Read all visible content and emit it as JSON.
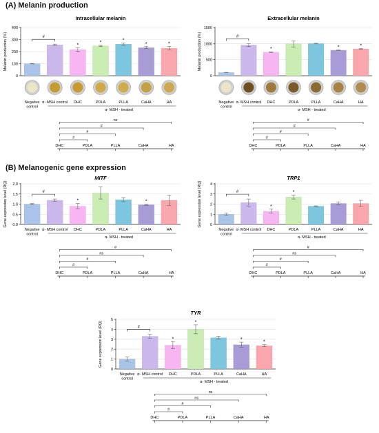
{
  "section_a_title": "(A) Melanin production",
  "section_b_title": "(B) Melanogenic gene expression",
  "treated_label": "α- MSH - treated",
  "chart_data": [
    {
      "id": "intracellular",
      "type": "bar",
      "title": "Intracellular melanin",
      "title_italic": false,
      "ylabel": "Melanin production (%)",
      "ylim": [
        0,
        400
      ],
      "yticks": [
        "0",
        "100",
        "200",
        "300",
        "400"
      ],
      "categories": [
        "Negative control",
        "α- MSH control",
        "DHC",
        "PDLA",
        "PLLA",
        "CaHA",
        "HA"
      ],
      "values": [
        100,
        257,
        217,
        248,
        262,
        233,
        228
      ],
      "errors": [
        2,
        5,
        15,
        5,
        10,
        8,
        15
      ],
      "stars": [
        false,
        false,
        true,
        true,
        true,
        true,
        true
      ],
      "hash_pairs": [
        [
          0,
          1
        ]
      ],
      "colors": [
        "#a9c4e8",
        "#cbb8ec",
        "#f7b6f1",
        "#c9edb3",
        "#7cc7df",
        "#a99cd6",
        "#f9a6ad"
      ],
      "has_wells": true,
      "well_tints": [
        "#ece6c8",
        "#c49a32",
        "#c69b34",
        "#cfa94a",
        "#d0ab4e",
        "#c6a044",
        "#cca84e"
      ],
      "comparison": {
        "labels": [
          "DHC",
          "PDLA",
          "PLLA",
          "CaHA",
          "HA"
        ],
        "brackets": [
          {
            "to": 1,
            "label": "#"
          },
          {
            "to": 2,
            "label": "#"
          },
          {
            "to": 3,
            "label": "#"
          },
          {
            "to": 4,
            "label": "ns"
          }
        ]
      }
    },
    {
      "id": "extracellular",
      "type": "bar",
      "title": "Extracellular melanin",
      "title_italic": false,
      "ylabel": "Melanin production (%)",
      "ylim": [
        0,
        1500
      ],
      "yticks": [
        "0",
        "500",
        "1000",
        "1500"
      ],
      "categories": [
        "Negative control",
        "α- MSH control",
        "DHC",
        "PDLA",
        "PLLA",
        "CaHA",
        "HA"
      ],
      "values": [
        100,
        955,
        735,
        990,
        1000,
        795,
        835
      ],
      "errors": [
        5,
        45,
        10,
        95,
        10,
        8,
        12
      ],
      "stars": [
        false,
        false,
        true,
        false,
        false,
        true,
        true
      ],
      "hash_pairs": [
        [
          0,
          1
        ]
      ],
      "colors": [
        "#a9c4e8",
        "#cbb8ec",
        "#f7b6f1",
        "#c9edb3",
        "#7cc7df",
        "#a99cd6",
        "#f9a6ad"
      ],
      "has_wells": true,
      "well_tints": [
        "#ece6c8",
        "#6e4f1e",
        "#a07a3a",
        "#7a5a26",
        "#8c6a30",
        "#a98244",
        "#b08d4c"
      ],
      "comparison": {
        "labels": [
          "DHC",
          "PDLA",
          "PLLA",
          "CaHA",
          "HA"
        ],
        "brackets": [
          {
            "to": 1,
            "label": "#"
          },
          {
            "to": 2,
            "label": "#"
          },
          {
            "to": 3,
            "label": "#"
          },
          {
            "to": 4,
            "label": "#"
          }
        ]
      }
    },
    {
      "id": "mitf",
      "type": "bar",
      "title": "MITF",
      "title_italic": true,
      "ylabel": "Gene expression level (RQ)",
      "ylim": [
        0,
        2.0
      ],
      "yticks": [
        "0.0",
        "0.5",
        "1.0",
        "1.5",
        "2.0"
      ],
      "categories": [
        "Negative control",
        "α- MSH control",
        "DHC",
        "PDLA",
        "PLLA",
        "CaHA",
        "HA"
      ],
      "values": [
        1.0,
        1.19,
        0.9,
        1.55,
        1.22,
        0.97,
        1.19
      ],
      "errors": [
        0.03,
        0.06,
        0.13,
        0.3,
        0.1,
        0.03,
        0.25
      ],
      "stars": [
        false,
        false,
        true,
        false,
        false,
        true,
        false
      ],
      "hash_pairs": [
        [
          0,
          1
        ]
      ],
      "colors": [
        "#a9c4e8",
        "#cbb8ec",
        "#f7b6f1",
        "#c9edb3",
        "#7cc7df",
        "#a99cd6",
        "#f9a6ad"
      ],
      "has_wells": false,
      "comparison": {
        "labels": [
          "DHC",
          "PDLA",
          "PLLA",
          "CaHA",
          "HA"
        ],
        "brackets": [
          {
            "to": 1,
            "label": "#"
          },
          {
            "to": 2,
            "label": "#"
          },
          {
            "to": 3,
            "label": "ns"
          },
          {
            "to": 4,
            "label": "#"
          }
        ]
      }
    },
    {
      "id": "trp1",
      "type": "bar",
      "title": "TRP1",
      "title_italic": true,
      "ylabel": "Gene expression level (RQ)",
      "ylim": [
        0,
        4
      ],
      "yticks": [
        "0",
        "1",
        "2",
        "3",
        "4"
      ],
      "categories": [
        "Negative control",
        "α- MSH control",
        "DHC",
        "PDLA",
        "PLLA",
        "CaHA",
        "HA"
      ],
      "values": [
        1.0,
        2.15,
        1.3,
        2.7,
        1.8,
        2.07,
        2.07
      ],
      "errors": [
        0.1,
        0.35,
        0.2,
        0.2,
        0.03,
        0.15,
        0.3
      ],
      "stars": [
        false,
        false,
        true,
        true,
        false,
        false,
        false
      ],
      "hash_pairs": [
        [
          0,
          1
        ]
      ],
      "colors": [
        "#a9c4e8",
        "#cbb8ec",
        "#f7b6f1",
        "#c9edb3",
        "#7cc7df",
        "#a99cd6",
        "#f9a6ad"
      ],
      "has_wells": false,
      "comparison": {
        "labels": [
          "DHC",
          "PDLA",
          "PLLA",
          "CaHA",
          "HA"
        ],
        "brackets": [
          {
            "to": 1,
            "label": "#"
          },
          {
            "to": 2,
            "label": "#"
          },
          {
            "to": 3,
            "label": "ns"
          },
          {
            "to": 4,
            "label": "#"
          }
        ]
      }
    },
    {
      "id": "tyr",
      "type": "bar",
      "title": "TYR",
      "title_italic": true,
      "ylabel": "Gene expression level (RQ)",
      "ylim": [
        0,
        5
      ],
      "yticks": [
        "0",
        "1",
        "2",
        "3",
        "4",
        "5"
      ],
      "categories": [
        "Negative control",
        "α- MSH control",
        "DHC",
        "PDLA",
        "PLLA",
        "CaHA",
        "HA"
      ],
      "values": [
        1.0,
        3.3,
        2.4,
        4.0,
        3.15,
        2.45,
        2.35
      ],
      "errors": [
        0.2,
        0.2,
        0.35,
        0.45,
        0.15,
        0.25,
        0.1
      ],
      "stars": [
        false,
        false,
        true,
        true,
        false,
        true,
        true
      ],
      "hash_pairs": [
        [
          0,
          1
        ]
      ],
      "colors": [
        "#a9c4e8",
        "#cbb8ec",
        "#f7b6f1",
        "#c9edb3",
        "#7cc7df",
        "#a99cd6",
        "#f9a6ad"
      ],
      "has_wells": false,
      "comparison": {
        "labels": [
          "DHC",
          "PDLA",
          "PLLA",
          "CaHA",
          "HA"
        ],
        "brackets": [
          {
            "to": 1,
            "label": "#"
          },
          {
            "to": 2,
            "label": "#"
          },
          {
            "to": 3,
            "label": "ns"
          },
          {
            "to": 4,
            "label": "ns"
          }
        ]
      }
    }
  ]
}
